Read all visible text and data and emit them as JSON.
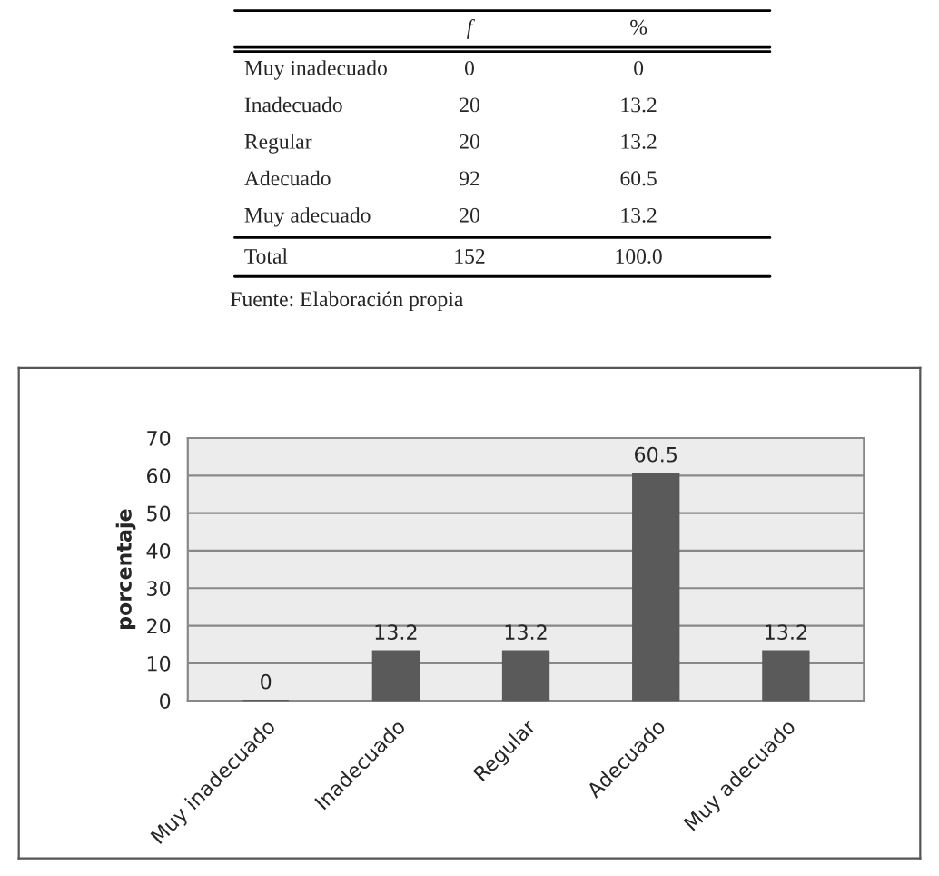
{
  "chart_data": [
    {
      "type": "other",
      "categories": [
        "Muy inadecuado",
        "Inadecuado",
        "Regular",
        "Adecuado",
        "Muy adecuado",
        "Total"
      ],
      "series": [
        {
          "name": "f",
          "values": [
            0,
            20,
            20,
            92,
            20,
            152
          ]
        },
        {
          "name": "%",
          "values": [
            0,
            13.2,
            13.2,
            60.5,
            13.2,
            100.0
          ],
          "value_labels": [
            "0",
            "13.2",
            "13.2",
            "60.5",
            "13.2",
            "100.0"
          ]
        }
      ],
      "annotations": [
        "Fuente: Elaboración propia"
      ],
      "data_labels": true
    },
    {
      "type": "bar",
      "categories": [
        "Muy inadecuado",
        "Inadecuado",
        "Regular",
        "Adecuado",
        "Muy adecuado"
      ],
      "values": [
        0,
        13.2,
        13.2,
        60.5,
        13.2
      ],
      "color": "#5a5a5a",
      "ylabel": "porcentaje",
      "ylim": [
        0,
        70
      ],
      "yticks": [
        0,
        10,
        20,
        30,
        40,
        50,
        60,
        70
      ],
      "grid": "y",
      "data_labels": true
    }
  ]
}
